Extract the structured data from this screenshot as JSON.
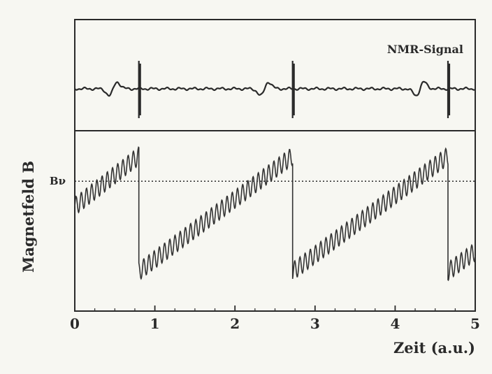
{
  "chart_data": [
    {
      "type": "line",
      "panel": "top",
      "annotation": "NMR-Signal",
      "x_range": [
        0,
        5
      ],
      "grid": false,
      "signal_events": [
        {
          "x": 0.48,
          "kind": "resonance-wiggle"
        },
        {
          "x": 0.8,
          "kind": "spike"
        },
        {
          "x": 2.37,
          "kind": "resonance-wiggle"
        },
        {
          "x": 2.72,
          "kind": "spike"
        },
        {
          "x": 4.31,
          "kind": "resonance-wiggle"
        },
        {
          "x": 4.66,
          "kind": "spike"
        }
      ]
    },
    {
      "type": "line",
      "panel": "bottom",
      "xlabel": "Zeit (a.u.)",
      "ylabel": "Magnetfeld B",
      "xlim": [
        0,
        5
      ],
      "xticks": [
        "0",
        "1",
        "2",
        "3",
        "4",
        "5"
      ],
      "reference_line": {
        "label": "Bν",
        "style": "dotted",
        "level": 0.72
      },
      "grid": false,
      "sawtooth": {
        "segments": [
          {
            "x_start": 0.0,
            "x_end": 0.8,
            "level_start": 0.58,
            "level_end": 0.86
          },
          {
            "x_start": 0.8,
            "x_end": 2.72,
            "level_start": 0.22,
            "level_end": 0.86
          },
          {
            "x_start": 2.72,
            "x_end": 4.66,
            "level_start": 0.22,
            "level_end": 0.86
          },
          {
            "x_start": 4.66,
            "x_end": 5.0,
            "level_start": 0.22,
            "level_end": 0.33
          }
        ],
        "ripple_period": 0.065,
        "ripple_amplitude": 0.05
      }
    }
  ]
}
